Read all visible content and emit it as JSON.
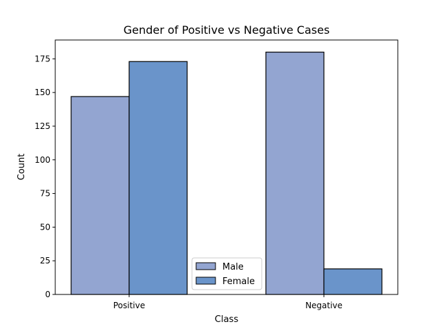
{
  "chart_data": {
    "type": "bar",
    "title": "Gender of Positive vs Negative Cases",
    "xlabel": "Class",
    "ylabel": "Count",
    "categories": [
      "Positive",
      "Negative"
    ],
    "series": [
      {
        "name": "Male",
        "values": [
          147,
          180
        ],
        "color": "#93a5d1"
      },
      {
        "name": "Female",
        "values": [
          173,
          19
        ],
        "color": "#6a94ca"
      }
    ],
    "ylim": [
      0,
      189
    ],
    "yticks": [
      0,
      25,
      50,
      75,
      100,
      125,
      150,
      175
    ],
    "grid": false,
    "legend_position": "bottom-center"
  }
}
